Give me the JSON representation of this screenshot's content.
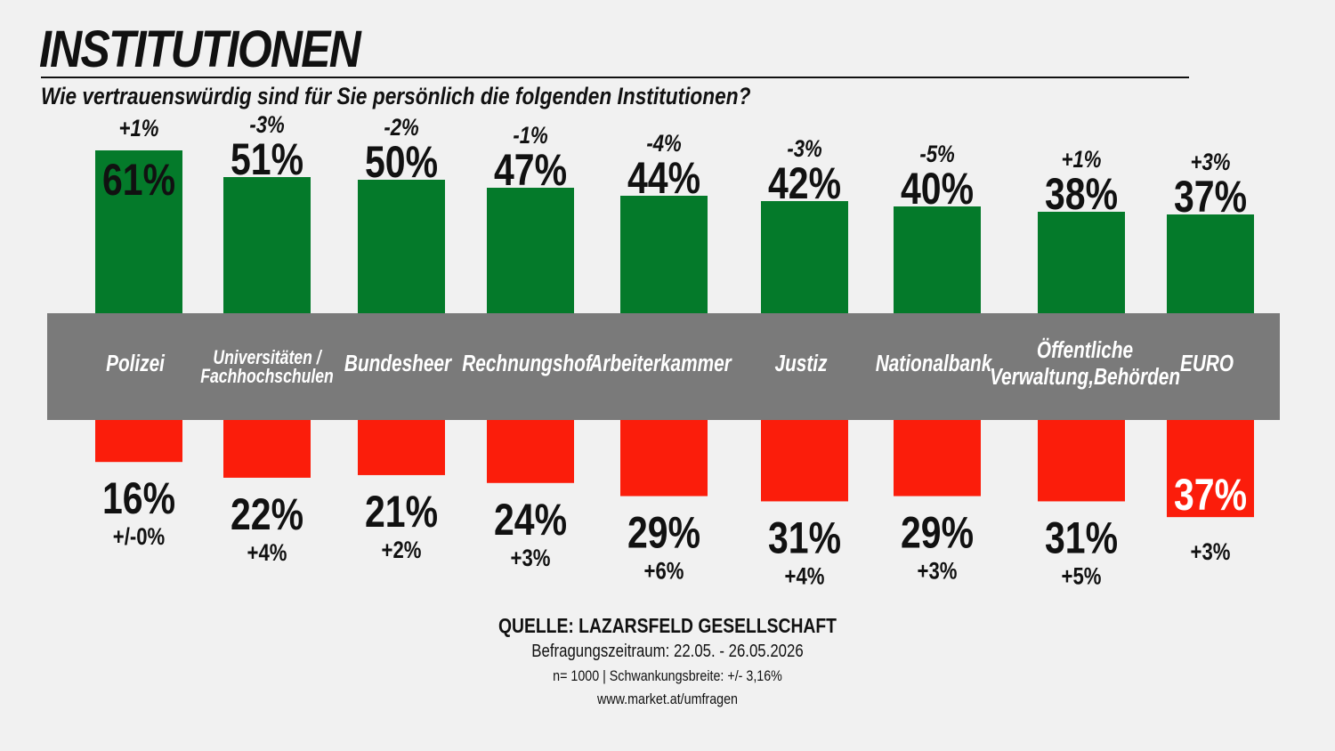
{
  "title": "INSTITUTIONEN",
  "subtitle": "Wie vertrauenswürdig sind für Sie persönlich die folgenden Institutionen?",
  "colors": {
    "trust": "#047a2a",
    "distrust": "#fb1d0b",
    "band": "#7a7a7a",
    "highlight_text": "#ffffff"
  },
  "chart_data": {
    "type": "bar",
    "categories": [
      [
        "Polizei"
      ],
      [
        "Universitäten /",
        "Fachhochschulen"
      ],
      [
        "Bundesheer"
      ],
      [
        "Rechnungshof"
      ],
      [
        "Arbeiterkammer"
      ],
      [
        "Justiz"
      ],
      [
        "Nationalbank"
      ],
      [
        "Öffentliche",
        "Verwaltung,Behörden"
      ],
      [
        "EURO"
      ]
    ],
    "series": [
      {
        "values": [
          61,
          51,
          50,
          47,
          44,
          42,
          40,
          38,
          37
        ],
        "labels": [
          "61%",
          "51%",
          "50%",
          "47%",
          "44%",
          "42%",
          "40%",
          "38%",
          "37%"
        ],
        "changes": [
          "+1%",
          "-3%",
          "-2%",
          "-1%",
          "-4%",
          "-3%",
          "-5%",
          "+1%",
          "+3%"
        ]
      },
      {
        "values": [
          16,
          22,
          21,
          24,
          29,
          31,
          29,
          31,
          37
        ],
        "labels": [
          "16%",
          "22%",
          "21%",
          "24%",
          "29%",
          "31%",
          "29%",
          "31%",
          "37%"
        ],
        "changes": [
          "+/-0%",
          "+4%",
          "+2%",
          "+3%",
          "+6%",
          "+4%",
          "+3%",
          "+5%",
          "+3%"
        ]
      }
    ]
  },
  "sources": {
    "title": "QUELLE: LAZARSFELD GESELLSCHAFT",
    "period": "Befragungszeitraum: 22.05. - 26.05.2026",
    "sample": "n= 1000 | Schwankungsbreite: +/- 3,16%",
    "url": "www.market.at/umfragen"
  }
}
